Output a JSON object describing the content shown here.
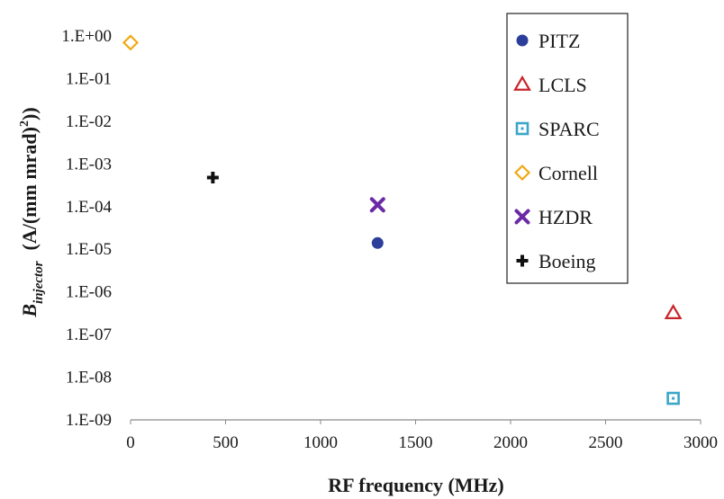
{
  "chart_data": {
    "type": "scatter",
    "xlabel": "RF frequency (MHz)",
    "ylabel": {
      "main": "B",
      "subscript": "injector",
      "units_before_sup": "(A/(mm mrad)",
      "units_sup": "2",
      "units_after_sup": "))"
    },
    "xlim": [
      0,
      3000
    ],
    "ylim": [
      1e-09,
      1
    ],
    "yscale": "log",
    "grid": false,
    "legend_position": "top-right",
    "x_ticks": [
      "0",
      "500",
      "1000",
      "1500",
      "2000",
      "2500",
      "3000"
    ],
    "y_ticks": [
      "1.E+00",
      "1.E-01",
      "1.E-02",
      "1.E-03",
      "1.E-04",
      "1.E-05",
      "1.E-06",
      "1.E-07",
      "1.E-08",
      "1.E-09"
    ],
    "series": [
      {
        "name": "PITZ",
        "marker": "circle",
        "color": "#2b3f9a",
        "points": [
          {
            "x": 1300,
            "y": 1.4e-05
          }
        ]
      },
      {
        "name": "LCLS",
        "marker": "triangle",
        "color": "#c8252b",
        "points": [
          {
            "x": 2856,
            "y": 3.2e-07
          }
        ]
      },
      {
        "name": "SPARC",
        "marker": "square",
        "color": "#3aa6c8",
        "points": [
          {
            "x": 2856,
            "y": 3.2e-09
          }
        ]
      },
      {
        "name": "Cornell",
        "marker": "diamond",
        "color": "#f0a814",
        "points": [
          {
            "x": 0,
            "y": 0.7
          }
        ]
      },
      {
        "name": "HZDR",
        "marker": "cross",
        "color": "#6a2aa5",
        "points": [
          {
            "x": 1300,
            "y": 0.00011
          }
        ]
      },
      {
        "name": "Boeing",
        "marker": "plus",
        "color": "#111111",
        "points": [
          {
            "x": 433,
            "y": 0.00048
          }
        ]
      }
    ]
  }
}
